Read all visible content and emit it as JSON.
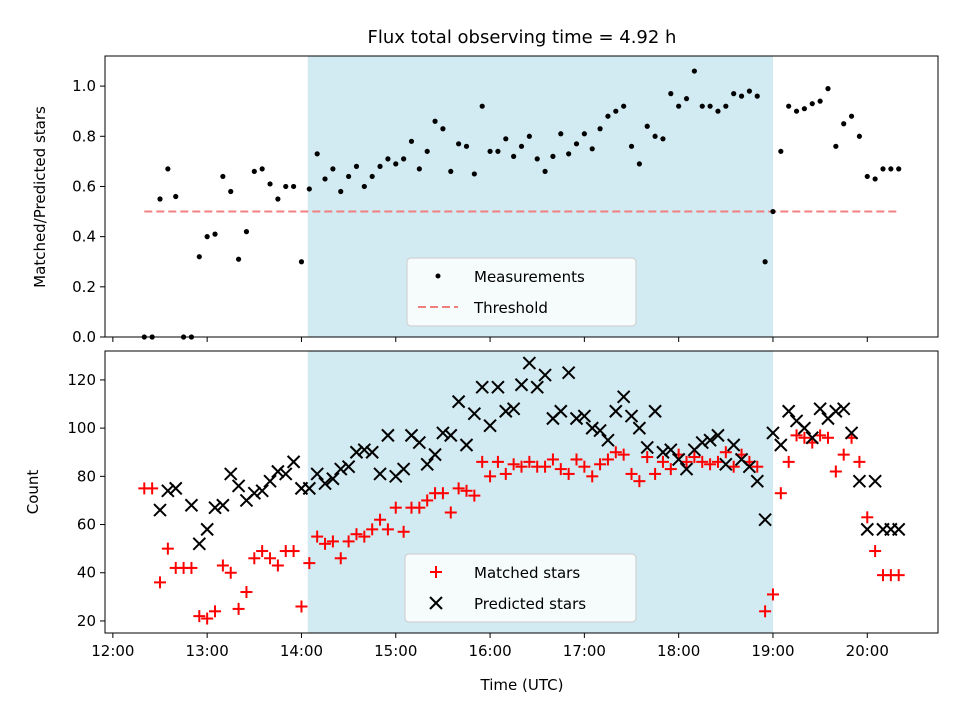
{
  "chart_data": [
    {
      "type": "scatter",
      "title": "Flux total observing time = 4.92 h",
      "xlabel": "",
      "ylabel": "Matched/Predicted stars",
      "ylim": [
        0,
        1.12
      ],
      "yticks": [
        "0.0",
        "0.2",
        "0.4",
        "0.6",
        "0.8",
        "1.0"
      ],
      "shaded_region": [
        "14:04",
        "19:00"
      ],
      "threshold": {
        "name": "Threshold",
        "value": 0.5,
        "x_range": [
          "12:20",
          "20:20"
        ],
        "color": "#f08080"
      },
      "series": [
        {
          "name": "Measurements",
          "marker": "dot",
          "color": "#000000",
          "x": [
            "12:20",
            "12:25",
            "12:30",
            "12:35",
            "12:40",
            "12:45",
            "12:50",
            "12:55",
            "13:00",
            "13:05",
            "13:10",
            "13:15",
            "13:20",
            "13:25",
            "13:30",
            "13:35",
            "13:40",
            "13:45",
            "13:50",
            "13:55",
            "14:00",
            "14:05",
            "14:10",
            "14:15",
            "14:20",
            "14:25",
            "14:30",
            "14:35",
            "14:40",
            "14:45",
            "14:50",
            "14:55",
            "15:00",
            "15:05",
            "15:10",
            "15:15",
            "15:20",
            "15:25",
            "15:30",
            "15:35",
            "15:40",
            "15:45",
            "15:50",
            "15:55",
            "16:00",
            "16:05",
            "16:10",
            "16:15",
            "16:20",
            "16:25",
            "16:30",
            "16:35",
            "16:40",
            "16:45",
            "16:50",
            "16:55",
            "17:00",
            "17:05",
            "17:10",
            "17:15",
            "17:20",
            "17:25",
            "17:30",
            "17:35",
            "17:40",
            "17:45",
            "17:50",
            "17:55",
            "18:00",
            "18:05",
            "18:10",
            "18:15",
            "18:20",
            "18:25",
            "18:30",
            "18:35",
            "18:40",
            "18:45",
            "18:50",
            "18:55",
            "19:00",
            "19:05",
            "19:10",
            "19:15",
            "19:20",
            "19:25",
            "19:30",
            "19:35",
            "19:40",
            "19:45",
            "19:50",
            "19:55",
            "20:00",
            "20:05",
            "20:10",
            "20:15",
            "20:20"
          ],
          "y": [
            0,
            0,
            0.55,
            0.67,
            0.56,
            0,
            0,
            0.32,
            0.4,
            0.41,
            0.64,
            0.58,
            0.31,
            0.42,
            0.66,
            0.67,
            0.61,
            0.55,
            0.6,
            0.6,
            0.3,
            0.59,
            0.73,
            0.63,
            0.67,
            0.58,
            0.64,
            0.68,
            0.6,
            0.64,
            0.68,
            0.71,
            0.69,
            0.71,
            0.78,
            0.67,
            0.74,
            0.86,
            0.83,
            0.66,
            0.77,
            0.76,
            0.65,
            0.92,
            0.74,
            0.74,
            0.79,
            0.72,
            0.76,
            0.8,
            0.71,
            0.66,
            0.72,
            0.81,
            0.73,
            0.77,
            0.81,
            0.75,
            0.83,
            0.88,
            0.9,
            0.92,
            0.76,
            0.69,
            0.84,
            0.8,
            0.79,
            0.97,
            0.92,
            0.95,
            1.06,
            0.92,
            0.92,
            0.9,
            0.92,
            0.97,
            0.96,
            0.98,
            0.96,
            0.3,
            0.5,
            0.74,
            0.92,
            0.9,
            0.91,
            0.93,
            0.94,
            0.99,
            0.76,
            0.85,
            0.88,
            0.8,
            0.64,
            0.63,
            0.67,
            0.67,
            0.67
          ]
        }
      ]
    },
    {
      "type": "scatter",
      "title": "",
      "xlabel": "Time (UTC)",
      "ylabel": "Count",
      "ylim": [
        15,
        132
      ],
      "yticks": [
        "20",
        "40",
        "60",
        "80",
        "100",
        "120"
      ],
      "xticks": [
        "12:00",
        "13:00",
        "14:00",
        "15:00",
        "16:00",
        "17:00",
        "18:00",
        "19:00",
        "20:00"
      ],
      "xlim": [
        "11:55",
        "20:45"
      ],
      "shaded_region": [
        "14:04",
        "19:00"
      ],
      "series": [
        {
          "name": "Matched stars",
          "marker": "plus",
          "color": "#ff0000",
          "x": [
            "12:20",
            "12:25",
            "12:30",
            "12:35",
            "12:40",
            "12:45",
            "12:50",
            "12:55",
            "13:00",
            "13:05",
            "13:10",
            "13:15",
            "13:20",
            "13:25",
            "13:30",
            "13:35",
            "13:40",
            "13:45",
            "13:50",
            "13:55",
            "14:00",
            "14:05",
            "14:10",
            "14:15",
            "14:20",
            "14:25",
            "14:30",
            "14:35",
            "14:40",
            "14:45",
            "14:50",
            "14:55",
            "15:00",
            "15:05",
            "15:10",
            "15:15",
            "15:20",
            "15:25",
            "15:30",
            "15:35",
            "15:40",
            "15:45",
            "15:50",
            "15:55",
            "16:00",
            "16:05",
            "16:10",
            "16:15",
            "16:20",
            "16:25",
            "16:30",
            "16:35",
            "16:40",
            "16:45",
            "16:50",
            "16:55",
            "17:00",
            "17:05",
            "17:10",
            "17:15",
            "17:20",
            "17:25",
            "17:30",
            "17:35",
            "17:40",
            "17:45",
            "17:50",
            "17:55",
            "18:00",
            "18:05",
            "18:10",
            "18:15",
            "18:20",
            "18:25",
            "18:30",
            "18:35",
            "18:40",
            "18:45",
            "18:50",
            "18:55",
            "19:00",
            "19:05",
            "19:10",
            "19:15",
            "19:20",
            "19:25",
            "19:30",
            "19:35",
            "19:40",
            "19:45",
            "19:50",
            "19:55",
            "20:00",
            "20:05",
            "20:10",
            "20:15",
            "20:20"
          ],
          "y": [
            75,
            75,
            36,
            50,
            42,
            42,
            42,
            22,
            21,
            24,
            43,
            40,
            25,
            32,
            46,
            49,
            46,
            43,
            49,
            49,
            26,
            44,
            55,
            52,
            53,
            46,
            53,
            56,
            55,
            58,
            62,
            58,
            67,
            57,
            67,
            67,
            70,
            73,
            73,
            65,
            75,
            74,
            72,
            86,
            80,
            86,
            81,
            85,
            84,
            86,
            84,
            84,
            87,
            83,
            81,
            87,
            84,
            80,
            85,
            87,
            90,
            89,
            81,
            78,
            88,
            81,
            86,
            83,
            89,
            86,
            88,
            86,
            85,
            86,
            90,
            84,
            89,
            86,
            84,
            24,
            31,
            73,
            86,
            97,
            96,
            94,
            97,
            96,
            82,
            89,
            96,
            86,
            63,
            49,
            39,
            39,
            39
          ]
        },
        {
          "name": "Predicted stars",
          "marker": "cross",
          "color": "#000000",
          "x": [
            "12:30",
            "12:35",
            "12:40",
            "12:50",
            "12:55",
            "13:00",
            "13:05",
            "13:10",
            "13:15",
            "13:20",
            "13:25",
            "13:30",
            "13:35",
            "13:40",
            "13:45",
            "13:50",
            "13:55",
            "14:00",
            "14:05",
            "14:10",
            "14:15",
            "14:20",
            "14:25",
            "14:30",
            "14:35",
            "14:40",
            "14:45",
            "14:50",
            "14:55",
            "15:00",
            "15:05",
            "15:10",
            "15:15",
            "15:20",
            "15:25",
            "15:30",
            "15:35",
            "15:40",
            "15:45",
            "15:50",
            "15:55",
            "16:00",
            "16:05",
            "16:10",
            "16:15",
            "16:20",
            "16:25",
            "16:30",
            "16:35",
            "16:40",
            "16:45",
            "16:50",
            "16:55",
            "17:00",
            "17:05",
            "17:10",
            "17:15",
            "17:20",
            "17:25",
            "17:30",
            "17:35",
            "17:40",
            "17:45",
            "17:50",
            "17:55",
            "18:00",
            "18:05",
            "18:10",
            "18:15",
            "18:20",
            "18:25",
            "18:30",
            "18:35",
            "18:40",
            "18:45",
            "18:50",
            "18:55",
            "19:00",
            "19:05",
            "19:10",
            "19:15",
            "19:20",
            "19:25",
            "19:30",
            "19:35",
            "19:40",
            "19:45",
            "19:50",
            "19:55",
            "20:00",
            "20:05",
            "20:10",
            "20:15",
            "20:20"
          ],
          "y": [
            66,
            74,
            75,
            68,
            52,
            58,
            67,
            68,
            81,
            76,
            70,
            73,
            74,
            78,
            82,
            81,
            86,
            75,
            75,
            81,
            77,
            79,
            83,
            84,
            90,
            91,
            90,
            81,
            97,
            80,
            83,
            97,
            94,
            85,
            89,
            98,
            97,
            111,
            93,
            106,
            117,
            101,
            117,
            107,
            108,
            118,
            127,
            117,
            122,
            104,
            107,
            123,
            104,
            105,
            100,
            99,
            95,
            107,
            113,
            105,
            100,
            92,
            107,
            90,
            91,
            87,
            83,
            91,
            94,
            95,
            97,
            85,
            93,
            87,
            84,
            78,
            62,
            98,
            93,
            107,
            103,
            100,
            96,
            108,
            104,
            107,
            108,
            98,
            78,
            58,
            78,
            58,
            58,
            58
          ]
        }
      ]
    }
  ]
}
